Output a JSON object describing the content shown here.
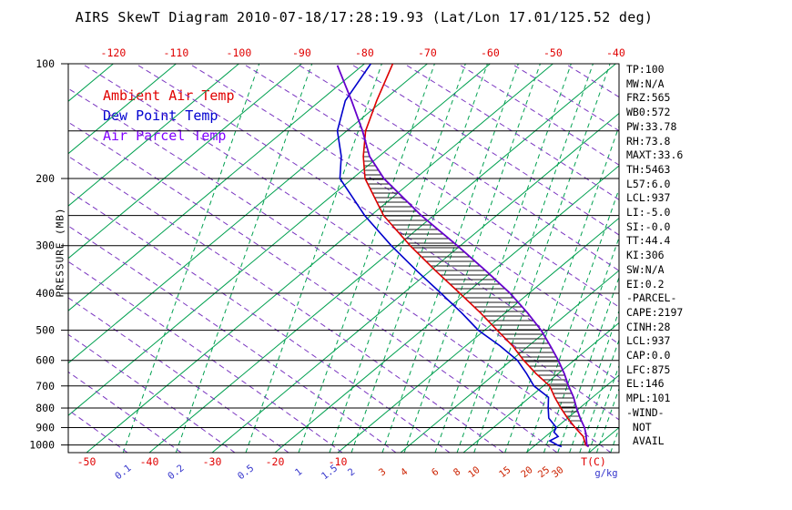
{
  "title": "AIRS SkewT Diagram 2010-07-18/17:28:19.93 (Lat/Lon 17.01/125.52 deg)",
  "legend": {
    "items": [
      {
        "id": "ambient",
        "label": "Ambient Air Temp",
        "color": "#e00000"
      },
      {
        "id": "dew",
        "label": "Dew Point Temp",
        "color": "#0000d0"
      },
      {
        "id": "parcel",
        "label": "Air Parcel Temp",
        "color": "#8000ff"
      }
    ]
  },
  "axes": {
    "y_label": "PRESSURE (MB)",
    "pressure_ticks": [
      100,
      200,
      300,
      400,
      500,
      600,
      700,
      800,
      900,
      1000
    ],
    "top_temp_ticks": [
      -120,
      -110,
      -100,
      -90,
      -80,
      -70,
      -60,
      -50,
      -40
    ],
    "bottom_temp_ticks": [
      -50,
      -40,
      -30,
      -20,
      -10
    ],
    "temp_unit_label": "T(C)",
    "mixing_ratio_ticks_blue": [
      0.1,
      0.2,
      0.5,
      1,
      1.5,
      2
    ],
    "mixing_ratio_ticks_red": [
      3,
      4,
      6,
      8,
      10,
      15,
      20,
      25,
      30
    ],
    "mixing_unit_label": "g/kg"
  },
  "colors": {
    "background": "#ffffff",
    "isotherm_green": "#00a050",
    "dry_adiabat_purple": "#7a35c0",
    "grid_black": "#000000",
    "hatch": "#1a1a1a",
    "temp_label_red": "#e00000",
    "mixing_label_blue": "#3535cc",
    "mixing_label_red": "#cc2200",
    "ambient_curve": "#dd0000",
    "dew_curve": "#0000cc",
    "parcel_curve": "#6600cc"
  },
  "side_panel": [
    "TP:100",
    "MW:N/A",
    "FRZ:565",
    "WB0:572",
    "PW:33.78",
    "RH:73.8",
    "MAXT:33.6",
    "TH:5463",
    "L57:6.0",
    "LCL:937",
    "LI:-5.0",
    "SI:-0.0",
    "TT:44.4",
    "KI:306",
    "SW:N/A",
    "EI:0.2",
    "-PARCEL-",
    "CAPE:2197",
    "CINH:28",
    "LCL:937",
    "CAP:0.0",
    "LFC:875",
    "EL:146",
    "MPL:101",
    "-WIND-",
    " NOT",
    " AVAIL"
  ],
  "chart_data": {
    "type": "line",
    "title": "AIRS SkewT Diagram 2010-07-18/17:28:19.93 (Lat/Lon 17.01/125.52 deg)",
    "x_axis_label": "T(C)",
    "y_axis_label": "PRESSURE (MB)",
    "y_scale": "log",
    "pressure_range": [
      100,
      1050
    ],
    "surface_temp_axis_range": [
      -50,
      40
    ],
    "isotherm_step_c": 10,
    "isotherm_range_c": [
      -160,
      40
    ],
    "pressure_gridlines": [
      150,
      200,
      250,
      300,
      400,
      500,
      600,
      700,
      800,
      900,
      1000
    ],
    "mixing_ratio_lines": [
      0.1,
      0.2,
      0.5,
      1,
      1.5,
      2,
      3,
      4,
      6,
      8,
      10,
      15,
      20,
      25,
      30,
      35,
      40,
      45,
      50,
      60,
      70,
      80
    ],
    "series": [
      {
        "id": "ambient",
        "name": "Ambient Air Temp",
        "color": "#dd0000",
        "units": {
          "pressure": "MB",
          "temperature": "C"
        },
        "points": [
          [
            100,
            -75.5
          ],
          [
            125,
            -71
          ],
          [
            150,
            -67
          ],
          [
            175,
            -62.5
          ],
          [
            200,
            -58
          ],
          [
            250,
            -48
          ],
          [
            300,
            -38
          ],
          [
            350,
            -29
          ],
          [
            400,
            -21
          ],
          [
            450,
            -14
          ],
          [
            500,
            -8
          ],
          [
            550,
            -2.5
          ],
          [
            600,
            2
          ],
          [
            650,
            6.5
          ],
          [
            700,
            11
          ],
          [
            750,
            14
          ],
          [
            800,
            17
          ],
          [
            850,
            20
          ],
          [
            900,
            23
          ],
          [
            950,
            26
          ],
          [
            1000,
            28
          ],
          [
            1010,
            28.8
          ]
        ]
      },
      {
        "id": "dew",
        "name": "Dew Point Temp",
        "color": "#0000cc",
        "units": {
          "pressure": "MB",
          "temperature": "C"
        },
        "points": [
          [
            100,
            -79
          ],
          [
            125,
            -76
          ],
          [
            150,
            -71.5
          ],
          [
            175,
            -66
          ],
          [
            200,
            -62
          ],
          [
            250,
            -51
          ],
          [
            300,
            -41
          ],
          [
            350,
            -32
          ],
          [
            400,
            -24
          ],
          [
            450,
            -17
          ],
          [
            500,
            -11
          ],
          [
            550,
            -4.5
          ],
          [
            600,
            1
          ],
          [
            650,
            5
          ],
          [
            700,
            8.5
          ],
          [
            750,
            13
          ],
          [
            800,
            15
          ],
          [
            850,
            17
          ],
          [
            900,
            20
          ],
          [
            925,
            20.5
          ],
          [
            950,
            22
          ],
          [
            975,
            21.5
          ],
          [
            1000,
            23.5
          ],
          [
            1010,
            24.5
          ]
        ]
      },
      {
        "id": "parcel",
        "name": "Air Parcel Temp",
        "color": "#6600cc",
        "units": {
          "pressure": "MB",
          "temperature": "C"
        },
        "points": [
          [
            101,
            -84
          ],
          [
            125,
            -75
          ],
          [
            150,
            -67.5
          ],
          [
            175,
            -61.5
          ],
          [
            200,
            -55
          ],
          [
            250,
            -42
          ],
          [
            300,
            -30.5
          ],
          [
            350,
            -21
          ],
          [
            400,
            -13
          ],
          [
            450,
            -6.5
          ],
          [
            500,
            -1
          ],
          [
            550,
            3.5
          ],
          [
            600,
            7.5
          ],
          [
            650,
            11
          ],
          [
            700,
            14
          ],
          [
            750,
            17
          ],
          [
            800,
            19.5
          ],
          [
            850,
            22
          ],
          [
            900,
            24.5
          ],
          [
            937,
            26
          ],
          [
            1000,
            28.2
          ],
          [
            1010,
            28.8
          ]
        ]
      }
    ],
    "hatch_region": {
      "description": "CAPE area hatched between Ambient Air Temp and Air Parcel Temp curves",
      "from_pressure": 875,
      "to_pressure": 148
    }
  }
}
